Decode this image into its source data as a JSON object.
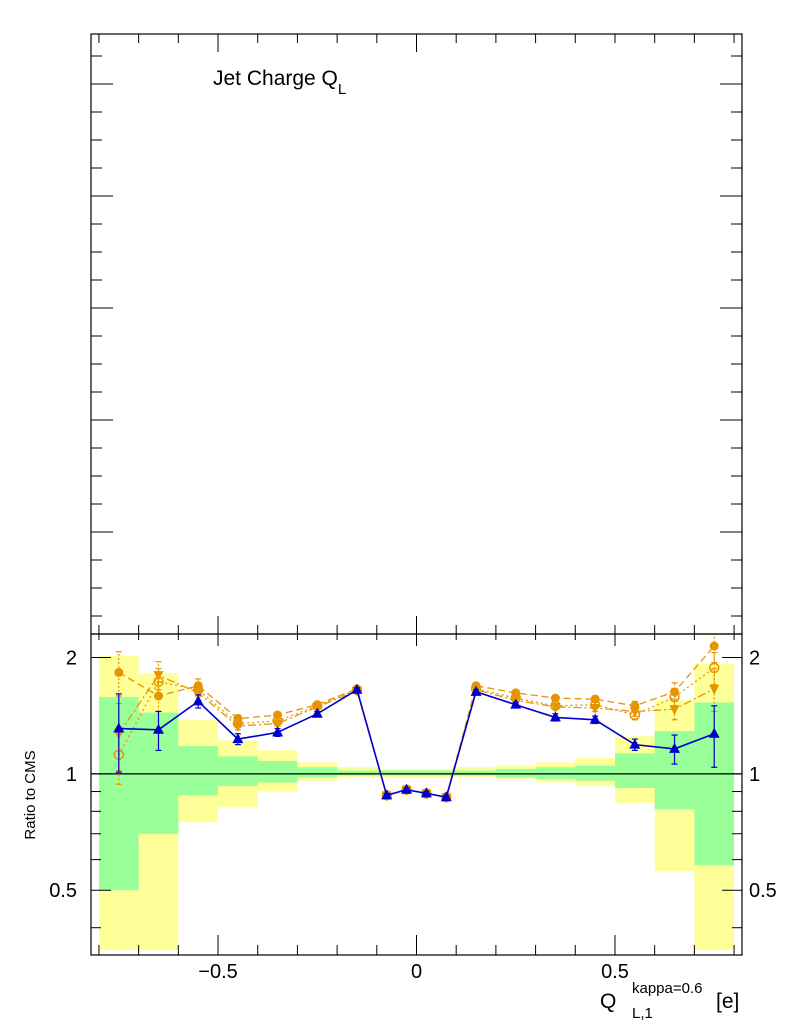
{
  "chart_data": [
    {
      "type": "histogram",
      "panel": "upper",
      "title": "Jet Charge Q",
      "title_subscript": "L",
      "series": [],
      "y_tick_labels_visible": false
    },
    {
      "type": "line",
      "panel": "ratio",
      "ylabel": "Ratio to CMS",
      "xlabel": "Q",
      "xlabel_subscript": "L,1",
      "xlabel_superscript": "kappa=0.6",
      "xlabel_unit": "[e]",
      "xlim": [
        -0.82,
        0.82
      ],
      "ylim": [
        0.34,
        2.3
      ],
      "y_log": true,
      "x_ticks": [
        -0.5,
        0,
        0.5
      ],
      "x_tick_labels": [
        "−0.5",
        "0",
        "0.5"
      ],
      "y_ticks": [
        0.5,
        1,
        2
      ],
      "y_tick_labels": [
        "0.5",
        "1",
        "2"
      ],
      "reference_line": 1,
      "bin_edges": [
        -0.8,
        -0.7,
        -0.6,
        -0.5,
        -0.4,
        -0.3,
        -0.2,
        -0.1,
        -0.05,
        0.0,
        0.05,
        0.1,
        0.2,
        0.3,
        0.4,
        0.5,
        0.6,
        0.7,
        0.8
      ],
      "x": [
        -0.75,
        -0.65,
        -0.55,
        -0.45,
        -0.35,
        -0.25,
        -0.15,
        -0.075,
        -0.025,
        0.025,
        0.075,
        0.15,
        0.25,
        0.35,
        0.45,
        0.55,
        0.65,
        0.75
      ],
      "bands": {
        "yellow_color": "#ffff99",
        "green_color": "#99ff99",
        "yellow_low": [
          0.35,
          0.35,
          0.75,
          0.82,
          0.9,
          0.96,
          0.98,
          0.98,
          0.98,
          0.98,
          0.98,
          0.98,
          0.97,
          0.95,
          0.93,
          0.84,
          0.56,
          0.35
        ],
        "yellow_high": [
          2.02,
          1.82,
          1.38,
          1.22,
          1.15,
          1.07,
          1.04,
          1.03,
          1.03,
          1.03,
          1.03,
          1.04,
          1.05,
          1.07,
          1.1,
          1.25,
          1.55,
          1.93
        ],
        "green_low": [
          0.5,
          0.7,
          0.88,
          0.93,
          0.95,
          0.98,
          0.99,
          0.99,
          0.99,
          0.99,
          0.99,
          0.99,
          0.98,
          0.97,
          0.96,
          0.92,
          0.81,
          0.58
        ],
        "green_high": [
          1.58,
          1.44,
          1.18,
          1.11,
          1.08,
          1.04,
          1.02,
          1.02,
          1.02,
          1.02,
          1.02,
          1.02,
          1.03,
          1.04,
          1.05,
          1.13,
          1.29,
          1.53
        ]
      },
      "series": [
        {
          "color": "#0000cc",
          "marker": "triangle-up",
          "line": "solid",
          "values": [
            1.31,
            1.3,
            1.54,
            1.23,
            1.28,
            1.43,
            1.65,
            0.88,
            0.91,
            0.89,
            0.87,
            1.63,
            1.51,
            1.4,
            1.38,
            1.19,
            1.16,
            1.27
          ],
          "errors": [
            0.3,
            0.15,
            0.06,
            0.04,
            0.03,
            0.02,
            0.02,
            0.01,
            0.01,
            0.01,
            0.01,
            0.02,
            0.02,
            0.03,
            0.03,
            0.04,
            0.1,
            0.23
          ]
        },
        {
          "color": "#e69500",
          "marker": "circle-filled",
          "line": "dashed",
          "values": [
            1.83,
            1.59,
            1.69,
            1.39,
            1.42,
            1.51,
            1.66,
            0.88,
            0.91,
            0.89,
            0.87,
            1.69,
            1.62,
            1.57,
            1.56,
            1.5,
            1.63,
            2.14
          ],
          "errors": [
            0.24,
            0.14,
            0.07,
            0.03,
            0.02,
            0.02,
            0.02,
            0.01,
            0.01,
            0.01,
            0.01,
            0.02,
            0.02,
            0.02,
            0.03,
            0.04,
            0.09,
            0.2
          ]
        },
        {
          "color": "#e69500",
          "marker": "circle-open",
          "line": "dotted",
          "values": [
            1.12,
            1.73,
            1.65,
            1.35,
            1.37,
            1.5,
            1.65,
            0.88,
            0.91,
            0.89,
            0.87,
            1.66,
            1.57,
            1.5,
            1.51,
            1.42,
            1.58,
            1.88
          ],
          "errors": [
            0.18,
            0.14,
            0.07,
            0.03,
            0.02,
            0.02,
            0.02,
            0.01,
            0.01,
            0.01,
            0.01,
            0.02,
            0.02,
            0.02,
            0.03,
            0.04,
            0.08,
            0.18
          ]
        },
        {
          "color": "#e69500",
          "marker": "triangle-down",
          "line": "dashdot",
          "values": [
            1.27,
            1.8,
            1.62,
            1.33,
            1.35,
            1.49,
            1.64,
            0.88,
            0.91,
            0.89,
            0.87,
            1.65,
            1.55,
            1.49,
            1.48,
            1.45,
            1.47,
            1.66
          ],
          "errors": [
            0.25,
            0.15,
            0.07,
            0.03,
            0.02,
            0.02,
            0.02,
            0.01,
            0.01,
            0.01,
            0.01,
            0.02,
            0.02,
            0.02,
            0.03,
            0.04,
            0.09,
            0.21
          ]
        }
      ]
    }
  ]
}
